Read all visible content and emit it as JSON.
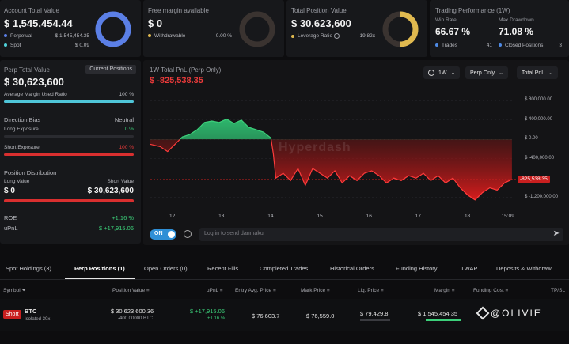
{
  "summary": {
    "account": {
      "label": "Account Total Value",
      "value": "$ 1,545,454.44",
      "rows": [
        {
          "name": "Perpetual",
          "value": "$ 1,545,454.35",
          "color": "#5b7fe6"
        },
        {
          "name": "Spot",
          "value": "$ 0.09",
          "color": "#4fd1d9"
        }
      ]
    },
    "free_margin": {
      "label": "Free margin available",
      "value": "$ 0",
      "row_name": "Withdrawable",
      "row_value": "0.00 %"
    },
    "position": {
      "label": "Total Position Value",
      "value": "$ 30,623,600",
      "row_name": "Leverage Ratio",
      "row_value": "19.82x"
    },
    "performance": {
      "label": "Trading Performance (1W)",
      "win_label": "Win Rate",
      "win_value": "66.67 %",
      "dd_label": "Max Drawdown",
      "dd_value": "71.08 %",
      "trades_label": "Trades",
      "trades_value": "41",
      "closed_label": "Closed Positions",
      "closed_value": "3"
    }
  },
  "perp_panel": {
    "title": "Perp Total Value",
    "tab": "Current Positions",
    "value": "$ 30,623,600",
    "margin_label": "Average Margin Used Ratio",
    "margin_value": "100 %",
    "margin_fraction": 1.0,
    "bias_label": "Direction Bias",
    "bias_value": "Neutral",
    "long_label": "Long Exposure",
    "long_value": "0 %",
    "long_fraction": 0.0,
    "short_label": "Short Exposure",
    "short_value": "100 %",
    "short_fraction": 1.0,
    "dist_label": "Position Distribution",
    "long_value_label": "Long Value",
    "short_value_label": "Short Value",
    "long_amount": "$ 0",
    "short_amount": "$ 30,623,600",
    "roe_label": "ROE",
    "roe_value": "+1.16 %",
    "upnl_label": "uPnL",
    "upnl_value": "$ +17,915.06"
  },
  "chart_panel": {
    "title": "1W Total PnL (Perp Only)",
    "value": "$ -825,538.35",
    "dropdowns": [
      "1W",
      "Perp Only",
      "Total PnL"
    ],
    "watermark": "Hyperdash",
    "toggle": "ON",
    "input_placeholder": "Log in to send danmaku"
  },
  "chart_data": {
    "type": "area",
    "y_ticks": [
      "800,000.00",
      "400,000.00",
      "0.00",
      "-400,000.00",
      "-1,200,000.00"
    ],
    "y_tick_values": [
      800000,
      400000,
      0,
      -400000,
      -1200000
    ],
    "x_ticks": [
      "12",
      "13",
      "14",
      "15",
      "16",
      "17",
      "18",
      "15:09"
    ],
    "x_tick_values": [
      12,
      13,
      14,
      15,
      16,
      17,
      18,
      18.75
    ],
    "current_label": "-825,538.35",
    "current_value": -825538.35,
    "ylim": [
      -1450000,
      1050000
    ],
    "xlim": [
      11.55,
      18.95
    ],
    "x": [
      11.55,
      11.75,
      11.9,
      12.05,
      12.2,
      12.35,
      12.5,
      12.65,
      12.8,
      12.95,
      13.1,
      13.25,
      13.4,
      13.55,
      13.7,
      13.85,
      14.0,
      14.05,
      14.1,
      14.25,
      14.4,
      14.55,
      14.7,
      14.85,
      15.0,
      15.15,
      15.3,
      15.45,
      15.6,
      15.75,
      15.9,
      16.05,
      16.2,
      16.35,
      16.5,
      16.65,
      16.8,
      16.95,
      17.1,
      17.25,
      17.4,
      17.55,
      17.7,
      17.85,
      18.0,
      18.15,
      18.3,
      18.45,
      18.6,
      18.75,
      18.9
    ],
    "y": [
      -100000,
      -150000,
      -250000,
      -100000,
      50000,
      100000,
      200000,
      350000,
      380000,
      350000,
      420000,
      330000,
      400000,
      250000,
      200000,
      150000,
      30000,
      -300000,
      -800000,
      -700000,
      -850000,
      -600000,
      -950000,
      -600000,
      -700000,
      -800000,
      -650000,
      -900000,
      -750000,
      -850000,
      -700000,
      -650000,
      -750000,
      -900000,
      -800000,
      -850000,
      -750000,
      -800000,
      -700000,
      -850000,
      -750000,
      -900000,
      -800000,
      -1000000,
      -1150000,
      -1250000,
      -1100000,
      -1000000,
      -1050000,
      -900000,
      -825538
    ]
  },
  "bottom_tabs": [
    "Spot Holdings (3)",
    "Perp Positions (1)",
    "Open Orders (0)",
    "Recent Fills",
    "Completed Trades",
    "Historical Orders",
    "Funding History",
    "TWAP",
    "Deposits & Withdraw"
  ],
  "table": {
    "headers": [
      "Symbol",
      "Position Value",
      "uPnL",
      "Entry Avg. Price",
      "Mark Price",
      "Liq. Price",
      "Margin",
      "Funding Cost",
      "TP/SL"
    ],
    "row": {
      "side": "Short",
      "symbol": "BTC",
      "margin_mode": "Isolated 30x",
      "position_value": "$ 30,623,600.36",
      "size": "-400.00000 BTC",
      "upnl": "$ +17,915.06",
      "upnl_pct": "+1.16 %",
      "entry": "$ 76,603.7",
      "mark": "$ 76,559.0",
      "liq": "$ 79,429.8",
      "margin": "$ 1,545,454.35"
    }
  },
  "watermark_text": "@OLIVIE"
}
